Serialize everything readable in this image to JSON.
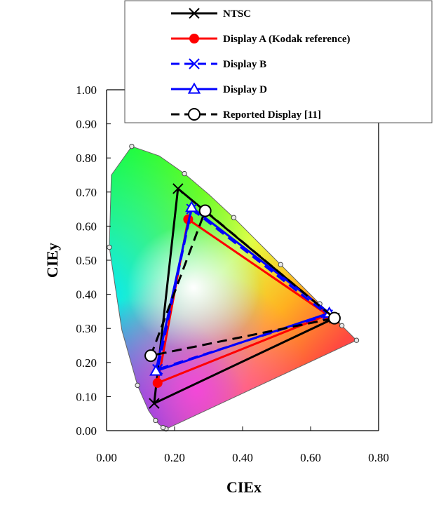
{
  "chart_data": {
    "type": "line",
    "xlabel": "CIEx",
    "ylabel": "CIEy",
    "xlim": [
      0,
      0.8
    ],
    "ylim": [
      0,
      1.0
    ],
    "xticks": [
      "0.00",
      "0.20",
      "0.40",
      "0.60",
      "0.80"
    ],
    "yticks": [
      "0.00",
      "0.10",
      "0.20",
      "0.30",
      "0.40",
      "0.50",
      "0.60",
      "0.70",
      "0.80",
      "0.90",
      "1.00"
    ],
    "grid": false,
    "legend_position": "top-right",
    "spectral_locus": [
      [
        0.175,
        0.005
      ],
      [
        0.172,
        0.005
      ],
      [
        0.166,
        0.009
      ],
      [
        0.155,
        0.018
      ],
      [
        0.144,
        0.03
      ],
      [
        0.124,
        0.058
      ],
      [
        0.091,
        0.133
      ],
      [
        0.045,
        0.295
      ],
      [
        0.008,
        0.538
      ],
      [
        0.014,
        0.75
      ],
      [
        0.074,
        0.834
      ],
      [
        0.155,
        0.806
      ],
      [
        0.229,
        0.754
      ],
      [
        0.302,
        0.692
      ],
      [
        0.374,
        0.625
      ],
      [
        0.444,
        0.555
      ],
      [
        0.512,
        0.487
      ],
      [
        0.575,
        0.424
      ],
      [
        0.627,
        0.372
      ],
      [
        0.666,
        0.334
      ],
      [
        0.692,
        0.308
      ],
      [
        0.714,
        0.286
      ],
      [
        0.735,
        0.265
      ]
    ],
    "series": [
      {
        "name": "NTSC",
        "color": "#000000",
        "dash": "solid",
        "marker": "x",
        "points": [
          [
            0.21,
            0.71
          ],
          [
            0.67,
            0.33
          ],
          [
            0.14,
            0.08
          ],
          [
            0.21,
            0.71
          ]
        ]
      },
      {
        "name": "Display A (Kodak reference)",
        "color": "#ff0000",
        "dash": "solid",
        "marker": "circle-filled",
        "points": [
          [
            0.24,
            0.62
          ],
          [
            0.65,
            0.34
          ],
          [
            0.15,
            0.14
          ],
          [
            0.24,
            0.62
          ]
        ]
      },
      {
        "name": "Display B",
        "color": "#0000ff",
        "dash": "dashed",
        "marker": "x",
        "points": [
          [
            0.25,
            0.65
          ],
          [
            0.65,
            0.34
          ],
          [
            0.15,
            0.18
          ],
          [
            0.25,
            0.65
          ]
        ]
      },
      {
        "name": "Display D",
        "color": "#0000ff",
        "dash": "solid",
        "marker": "triangle-open",
        "points": [
          [
            0.25,
            0.655
          ],
          [
            0.655,
            0.345
          ],
          [
            0.145,
            0.175
          ],
          [
            0.25,
            0.655
          ]
        ]
      },
      {
        "name": "Reported Display [11]",
        "color": "#000000",
        "dash": "dashed",
        "marker": "circle-open",
        "points": [
          [
            0.29,
            0.645
          ],
          [
            0.67,
            0.33
          ],
          [
            0.13,
            0.22
          ],
          [
            0.29,
            0.645
          ]
        ]
      }
    ]
  }
}
